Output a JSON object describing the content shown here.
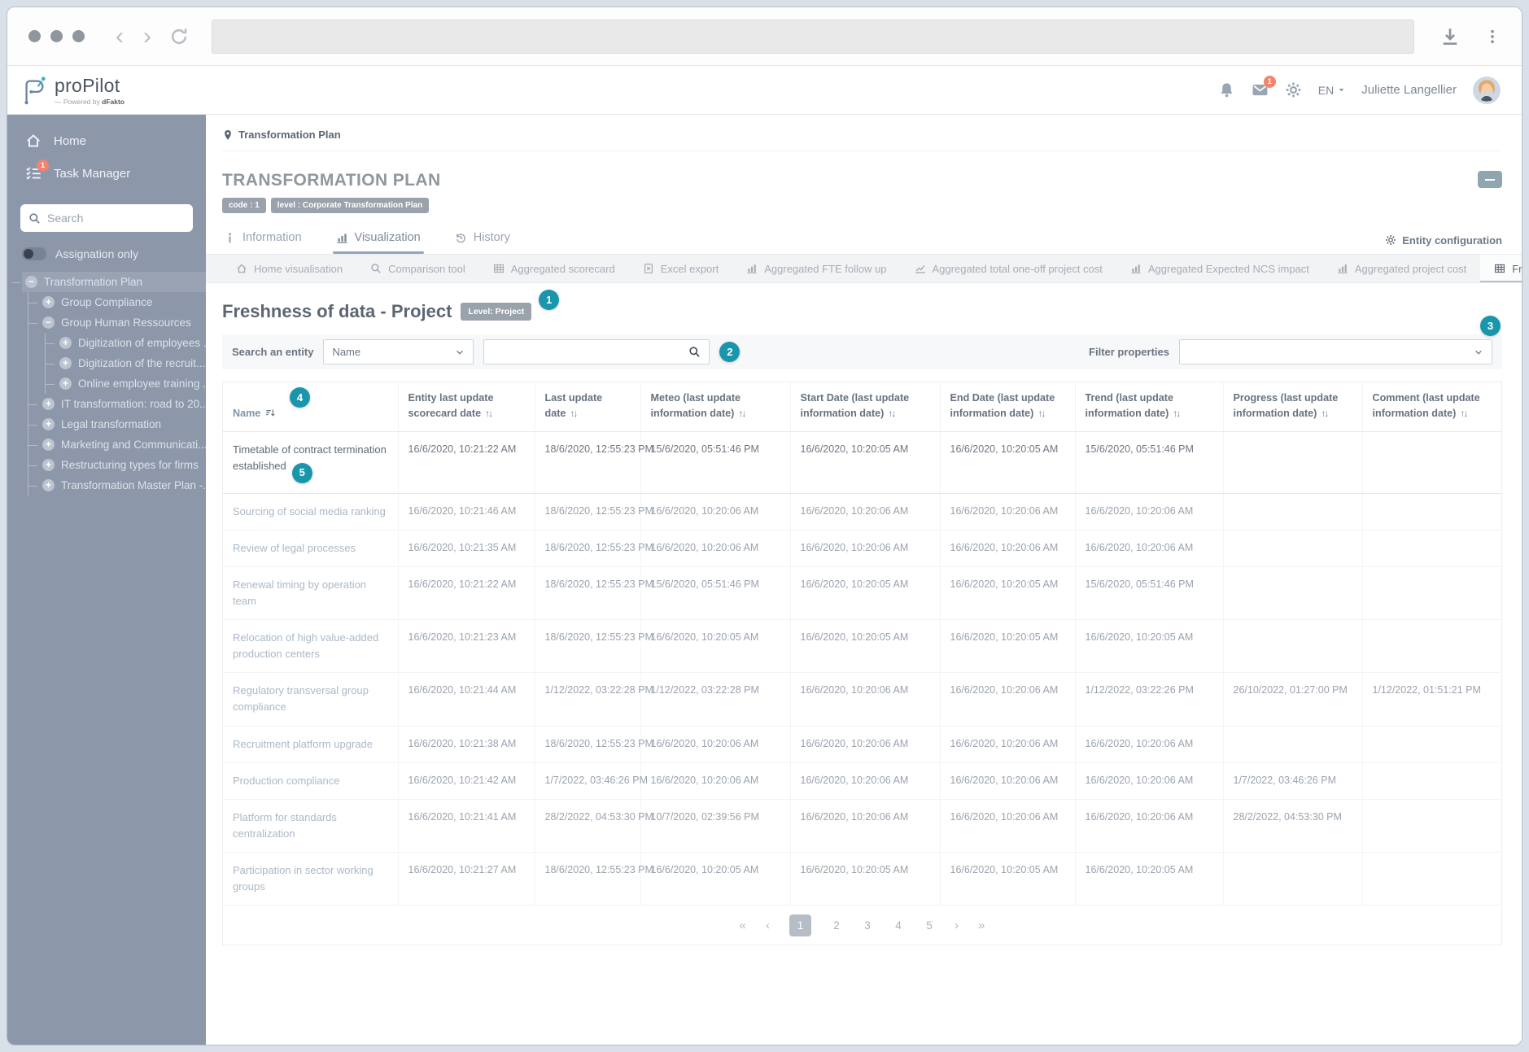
{
  "browser": {
    "url": ""
  },
  "header": {
    "logo_text": "proPilot",
    "logo_powered_prefix": "— Powered by ",
    "logo_powered_brand": "dFakto",
    "mail_badge": "1",
    "lang": "EN",
    "user_name": "Juliette Langellier"
  },
  "sidebar": {
    "home_label": "Home",
    "task_manager_label": "Task Manager",
    "task_badge": "1",
    "search_placeholder": "Search",
    "toggle_label": "Assignation only",
    "tree": [
      {
        "label": "Transformation Plan",
        "expander": "minus",
        "level": 0,
        "selected": true
      },
      {
        "label": "Group Compliance",
        "expander": "plus",
        "level": 1
      },
      {
        "label": "Group Human Ressources",
        "expander": "minus",
        "level": 1
      },
      {
        "label": "Digitization of employees ...",
        "expander": "plus",
        "level": 2
      },
      {
        "label": "Digitization of the recruit...",
        "expander": "plus",
        "level": 2
      },
      {
        "label": "Online employee training ...",
        "expander": "plus",
        "level": 2
      },
      {
        "label": "IT transformation: road to 20...",
        "expander": "plus",
        "level": 1
      },
      {
        "label": "Legal transformation",
        "expander": "plus",
        "level": 1
      },
      {
        "label": "Marketing and Communicati...",
        "expander": "plus",
        "level": 1
      },
      {
        "label": "Restructuring types for firms",
        "expander": "plus",
        "level": 1
      },
      {
        "label": "Transformation Master Plan -...",
        "expander": "plus",
        "level": 1
      }
    ]
  },
  "main": {
    "breadcrumb": "Transformation Plan",
    "title": "TRANSFORMATION PLAN",
    "badges": [
      "code : 1",
      "level : Corporate Transformation Plan"
    ],
    "tabs": [
      {
        "label": "Information",
        "icon": "info",
        "active": false
      },
      {
        "label": "Visualization",
        "icon": "chartbar",
        "active": true
      },
      {
        "label": "History",
        "icon": "history",
        "active": false
      }
    ],
    "entity_config_label": "Entity configuration",
    "subtabs": [
      {
        "label": "Home visualisation",
        "icon": "home",
        "active": false
      },
      {
        "label": "Comparison tool",
        "icon": "search",
        "active": false
      },
      {
        "label": "Aggregated scorecard",
        "icon": "grid",
        "active": false
      },
      {
        "label": "Excel export",
        "icon": "excel",
        "active": false
      },
      {
        "label": "Aggregated FTE follow up",
        "icon": "chartbar",
        "active": false
      },
      {
        "label": "Aggregated total one-off project cost",
        "icon": "chartline",
        "active": false
      },
      {
        "label": "Aggregated Expected NCS impact",
        "icon": "chartbar",
        "active": false
      },
      {
        "label": "Aggregated project cost",
        "icon": "chartbar",
        "active": false
      },
      {
        "label": "Freshness of data - Project",
        "icon": "grid",
        "active": true
      }
    ],
    "section": {
      "heading": "Freshness of data - Project",
      "level_badge": "Level: Project",
      "search_label": "Search an entity",
      "search_field": "Name",
      "search_value": "",
      "filter_label": "Filter properties",
      "annotations": {
        "a1": "1",
        "a2": "2",
        "a3": "3",
        "a4": "4",
        "a5": "5"
      }
    },
    "table": {
      "columns": [
        "Name",
        "Entity last update scorecard date",
        "Last update date",
        "Meteo (last update information date)",
        "Start Date (last update information date)",
        "End Date (last update information date)",
        "Trend (last update information date)",
        "Progress (last update information date)",
        "Comment (last update information date)"
      ],
      "rows": [
        {
          "name": "Timetable of contract termination established",
          "highlighted": true,
          "annotation": "5",
          "cells": [
            "16/6/2020, 10:21:22 AM",
            "18/6/2020, 12:55:23 PM",
            "15/6/2020, 05:51:46 PM",
            "16/6/2020, 10:20:05 AM",
            "16/6/2020, 10:20:05 AM",
            "15/6/2020, 05:51:46 PM",
            "",
            ""
          ]
        },
        {
          "name": "Sourcing of social media ranking",
          "cells": [
            "16/6/2020, 10:21:46 AM",
            "18/6/2020, 12:55:23 PM",
            "16/6/2020, 10:20:06 AM",
            "16/6/2020, 10:20:06 AM",
            "16/6/2020, 10:20:06 AM",
            "16/6/2020, 10:20:06 AM",
            "",
            ""
          ]
        },
        {
          "name": "Review of legal processes",
          "cells": [
            "16/6/2020, 10:21:35 AM",
            "18/6/2020, 12:55:23 PM",
            "16/6/2020, 10:20:06 AM",
            "16/6/2020, 10:20:06 AM",
            "16/6/2020, 10:20:06 AM",
            "16/6/2020, 10:20:06 AM",
            "",
            ""
          ]
        },
        {
          "name": "Renewal timing by operation team",
          "cells": [
            "16/6/2020, 10:21:22 AM",
            "18/6/2020, 12:55:23 PM",
            "15/6/2020, 05:51:46 PM",
            "16/6/2020, 10:20:05 AM",
            "16/6/2020, 10:20:05 AM",
            "15/6/2020, 05:51:46 PM",
            "",
            ""
          ]
        },
        {
          "name": "Relocation of high value-added production centers",
          "cells": [
            "16/6/2020, 10:21:23 AM",
            "18/6/2020, 12:55:23 PM",
            "16/6/2020, 10:20:05 AM",
            "16/6/2020, 10:20:05 AM",
            "16/6/2020, 10:20:05 AM",
            "16/6/2020, 10:20:05 AM",
            "",
            ""
          ]
        },
        {
          "name": "Regulatory transversal group compliance",
          "cells": [
            "16/6/2020, 10:21:44 AM",
            "1/12/2022, 03:22:28 PM",
            "1/12/2022, 03:22:28 PM",
            "16/6/2020, 10:20:06 AM",
            "16/6/2020, 10:20:06 AM",
            "1/12/2022, 03:22:26 PM",
            "26/10/2022, 01:27:00 PM",
            "1/12/2022, 01:51:21 PM"
          ]
        },
        {
          "name": "Recruitment platform upgrade",
          "cells": [
            "16/6/2020, 10:21:38 AM",
            "18/6/2020, 12:55:23 PM",
            "16/6/2020, 10:20:06 AM",
            "16/6/2020, 10:20:06 AM",
            "16/6/2020, 10:20:06 AM",
            "16/6/2020, 10:20:06 AM",
            "",
            ""
          ]
        },
        {
          "name": "Production compliance",
          "cells": [
            "16/6/2020, 10:21:42 AM",
            "1/7/2022, 03:46:26 PM",
            "16/6/2020, 10:20:06 AM",
            "16/6/2020, 10:20:06 AM",
            "16/6/2020, 10:20:06 AM",
            "16/6/2020, 10:20:06 AM",
            "1/7/2022, 03:46:26 PM",
            ""
          ]
        },
        {
          "name": "Platform for standards centralization",
          "cells": [
            "16/6/2020, 10:21:41 AM",
            "28/2/2022, 04:53:30 PM",
            "10/7/2020, 02:39:56 PM",
            "16/6/2020, 10:20:06 AM",
            "16/6/2020, 10:20:06 AM",
            "16/6/2020, 10:20:06 AM",
            "28/2/2022, 04:53:30 PM",
            ""
          ]
        },
        {
          "name": "Participation in sector working groups",
          "cells": [
            "16/6/2020, 10:21:27 AM",
            "18/6/2020, 12:55:23 PM",
            "16/6/2020, 10:20:05 AM",
            "16/6/2020, 10:20:05 AM",
            "16/6/2020, 10:20:05 AM",
            "16/6/2020, 10:20:05 AM",
            "",
            ""
          ]
        }
      ]
    },
    "pagination": {
      "first": "«",
      "prev": "‹",
      "pages": [
        "1",
        "2",
        "3",
        "4",
        "5"
      ],
      "active_page": "1",
      "next": "›",
      "last": "»"
    }
  },
  "colors": {
    "accent": "#1a96ac",
    "badge_red": "#f2836f",
    "sidebar_bg": "#8c97aa"
  }
}
